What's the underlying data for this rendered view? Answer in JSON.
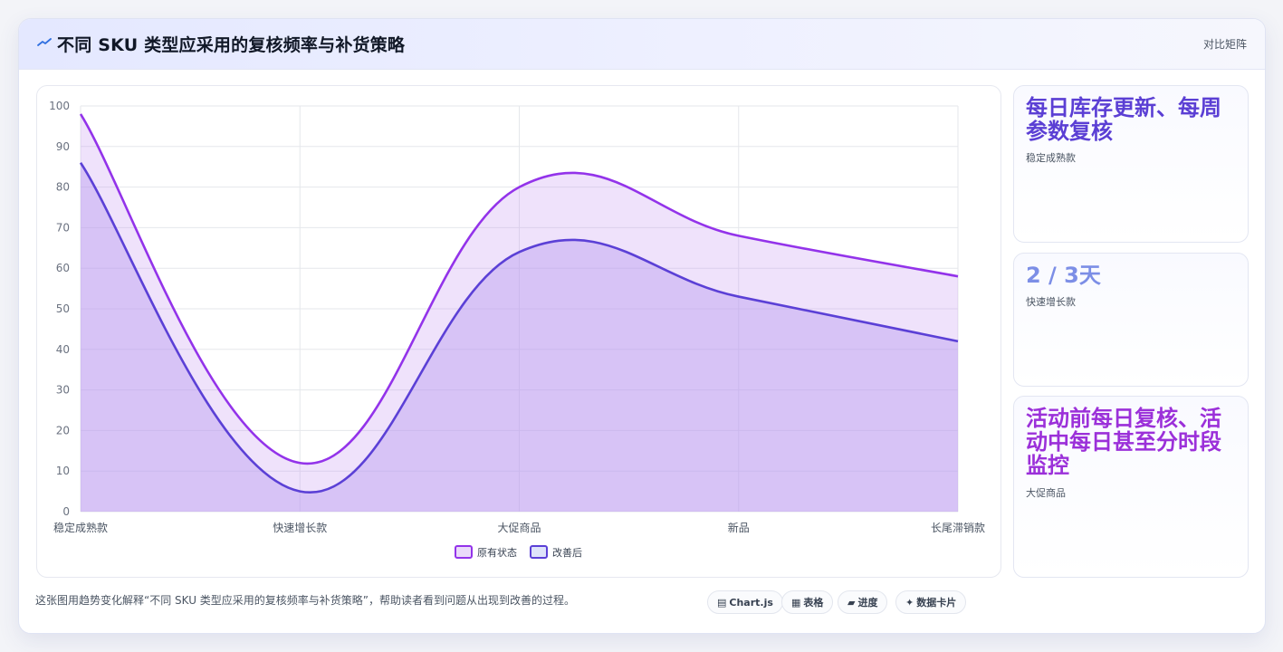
{
  "header": {
    "title": "不同 SKU 类型应采用的复核频率与补货策略",
    "action_label": "对比矩阵",
    "icon": "trend-line-icon"
  },
  "chart_data": {
    "type": "area",
    "categories": [
      "稳定成熟款",
      "快速增长款",
      "大促商品",
      "新品",
      "长尾滞销款"
    ],
    "series": [
      {
        "name": "原有状态",
        "values": [
          98,
          12,
          80,
          68,
          58
        ],
        "color": "#9333ea"
      },
      {
        "name": "改善后",
        "values": [
          86,
          5,
          64,
          53,
          42
        ],
        "color": "#5b40d6"
      }
    ],
    "ylim": [
      0,
      100
    ],
    "yticks": [
      0,
      10,
      20,
      30,
      40,
      50,
      60,
      70,
      80,
      90,
      100
    ],
    "grid": true,
    "legend": "bottom"
  },
  "side_cards": [
    {
      "value": "每日库存更新、每周参数复核",
      "label": "稳定成熟款",
      "color": "#5b3fd4"
    },
    {
      "value": "2 / 3天",
      "label": "快速增长款",
      "color": "#7c8ee6"
    },
    {
      "value": "活动前每日复核、活动中每日甚至分时段监控",
      "label": "大促商品",
      "color": "#9b30d9"
    }
  ],
  "footnote": "这张图用趋势变化解释“不同 SKU 类型应采用的复核频率与补货策略”，帮助读者看到问题从出现到改善的过程。",
  "chips": [
    {
      "icon": "▤",
      "label": "Chart.js"
    },
    {
      "icon": "▦",
      "label": "表格"
    },
    {
      "icon": "▰",
      "label": "进度"
    },
    {
      "icon": "✦",
      "label": "数据卡片"
    }
  ]
}
